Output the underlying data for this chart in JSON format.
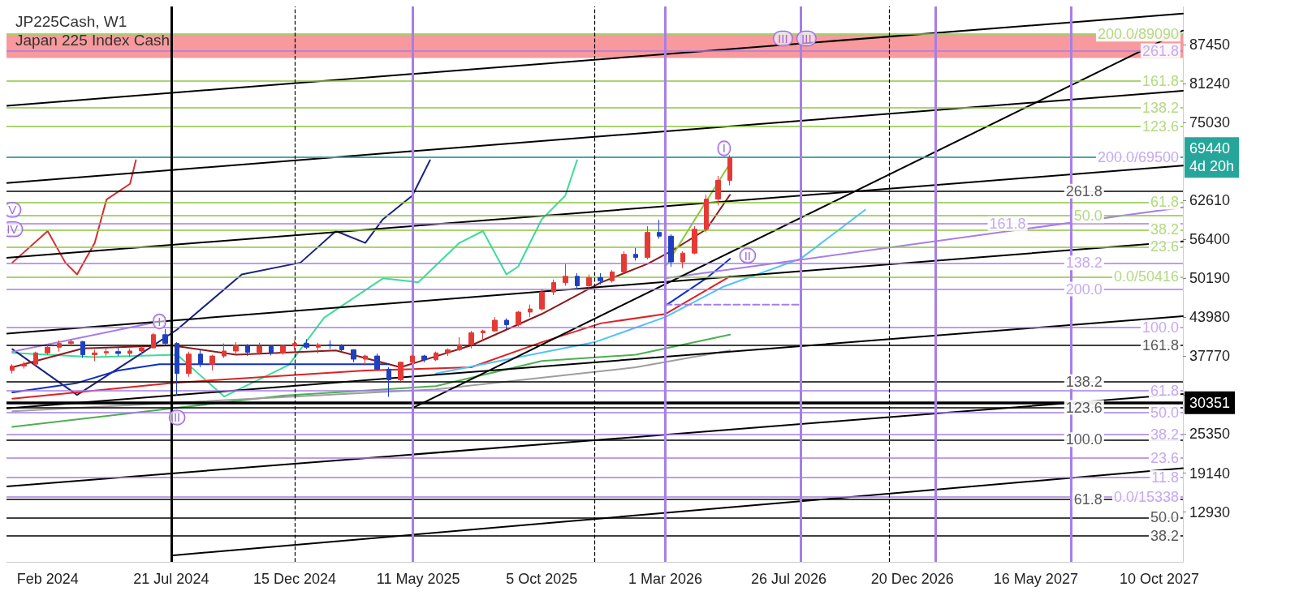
{
  "chart_data": {
    "type": "candlestick",
    "title": "JP225Cash, W1",
    "subtitle": "Japan 225 Index Cash",
    "x": [
      "2024-01-14",
      "2024-01-28",
      "2024-02-11",
      "2024-02-25",
      "2024-03-10",
      "2024-03-24",
      "2024-04-07",
      "2024-04-21",
      "2024-05-05",
      "2024-05-19",
      "2024-06-02",
      "2024-06-16",
      "2024-06-30",
      "2024-07-14",
      "2024-07-28",
      "2024-08-11",
      "2024-08-25",
      "2024-09-08",
      "2024-09-22",
      "2024-10-06",
      "2024-10-20",
      "2024-11-03",
      "2024-11-17",
      "2024-12-01",
      "2024-12-15",
      "2024-12-29",
      "2025-01-12",
      "2025-01-26",
      "2025-02-09",
      "2025-02-23",
      "2025-03-09",
      "2025-03-23",
      "2025-04-06",
      "2025-04-20",
      "2025-05-04",
      "2025-05-18",
      "2025-06-01",
      "2025-06-15",
      "2025-06-29",
      "2025-07-13",
      "2025-07-27",
      "2025-08-10",
      "2025-08-24",
      "2025-09-07",
      "2025-09-21",
      "2025-10-05",
      "2025-10-19",
      "2025-11-02",
      "2025-11-16",
      "2025-11-30",
      "2025-12-14",
      "2025-12-28",
      "2026-01-11",
      "2026-01-25",
      "2026-02-08",
      "2026-02-22",
      "2026-03-08",
      "2026-03-22",
      "2026-04-05",
      "2026-04-19",
      "2026-05-03",
      "2026-05-17"
    ],
    "ohlc": [
      [
        35500,
        36500,
        35000,
        36200
      ],
      [
        36200,
        36900,
        35800,
        36500
      ],
      [
        36500,
        38500,
        36300,
        38300
      ],
      [
        38300,
        39500,
        38000,
        39200
      ],
      [
        39200,
        40300,
        38500,
        39800
      ],
      [
        39800,
        40500,
        39500,
        40100
      ],
      [
        40100,
        40200,
        37500,
        38000
      ],
      [
        38000,
        38800,
        37000,
        38300
      ],
      [
        38300,
        39000,
        37800,
        38500
      ],
      [
        38500,
        39100,
        37800,
        38200
      ],
      [
        38200,
        39000,
        37700,
        38600
      ],
      [
        38600,
        39300,
        38000,
        39100
      ],
      [
        39100,
        41500,
        39000,
        41200
      ],
      [
        41200,
        42100,
        39500,
        39800
      ],
      [
        39800,
        40000,
        31500,
        35000
      ],
      [
        35000,
        38500,
        34500,
        38100
      ],
      [
        38100,
        38800,
        36000,
        36500
      ],
      [
        36500,
        38000,
        35500,
        37800
      ],
      [
        37800,
        39800,
        37500,
        38600
      ],
      [
        38600,
        40000,
        38000,
        39500
      ],
      [
        39500,
        39700,
        37800,
        38400
      ],
      [
        38400,
        39900,
        38000,
        39300
      ],
      [
        39300,
        39500,
        37900,
        38300
      ],
      [
        38300,
        39600,
        38000,
        39400
      ],
      [
        39400,
        40300,
        38800,
        39800
      ],
      [
        39800,
        40500,
        38900,
        39200
      ],
      [
        39200,
        39900,
        38200,
        39600
      ],
      [
        39600,
        40300,
        38900,
        39500
      ],
      [
        39500,
        39700,
        38500,
        38800
      ],
      [
        38800,
        38900,
        36800,
        37300
      ],
      [
        37300,
        38000,
        36300,
        37800
      ],
      [
        37800,
        38200,
        35500,
        35700
      ],
      [
        35700,
        36000,
        31300,
        34000
      ],
      [
        34000,
        36900,
        33800,
        36800
      ],
      [
        36800,
        38000,
        36500,
        37800
      ],
      [
        37800,
        38000,
        36800,
        37200
      ],
      [
        37200,
        38500,
        37000,
        38300
      ],
      [
        38300,
        39000,
        37800,
        38800
      ],
      [
        38800,
        40800,
        38600,
        39600
      ],
      [
        39600,
        41800,
        39000,
        41500
      ],
      [
        41500,
        42000,
        40300,
        41800
      ],
      [
        41800,
        44000,
        41700,
        43500
      ],
      [
        43500,
        43800,
        42000,
        42800
      ],
      [
        42800,
        45000,
        42500,
        44800
      ],
      [
        44800,
        46000,
        44000,
        45300
      ],
      [
        45300,
        48500,
        45000,
        48000
      ],
      [
        48000,
        50000,
        47500,
        49500
      ],
      [
        49500,
        52500,
        49000,
        50500
      ],
      [
        50500,
        51000,
        48500,
        49000
      ],
      [
        49000,
        50800,
        48500,
        50300
      ],
      [
        50300,
        51000,
        49200,
        49800
      ],
      [
        49800,
        51500,
        49500,
        51200
      ],
      [
        51200,
        54500,
        51000,
        54000
      ],
      [
        54000,
        55000,
        53000,
        53500
      ],
      [
        53500,
        58500,
        53200,
        57500
      ],
      [
        57500,
        59500,
        56500,
        56900
      ],
      [
        56900,
        57200,
        52000,
        52800
      ],
      [
        52800,
        54500,
        51800,
        54200
      ],
      [
        54200,
        58500,
        54000,
        58000
      ],
      [
        58000,
        63500,
        57500,
        62800
      ],
      [
        62800,
        66500,
        61800,
        65800
      ],
      [
        65800,
        69800,
        65000,
        69440
      ]
    ],
    "series": [
      {
        "type": "line",
        "color": "#3ddc97",
        "x": [
          "2024-01-14",
          "2024-04-21",
          "2024-07-28",
          "2024-09-22",
          "2024-12-08",
          "2025-01-19",
          "2025-03-30",
          "2025-05-11",
          "2025-06-29",
          "2025-07-27",
          "2025-08-24",
          "2025-09-07",
          "2025-10-05",
          "2025-11-02",
          "2025-11-16"
        ],
        "values": [
          38300,
          37630,
          38000,
          31350,
          36370,
          43900,
          50180,
          49550,
          55830,
          57710,
          50810,
          52060,
          59590,
          63360,
          69000
        ]
      },
      {
        "type": "line",
        "color": "#1a237e",
        "x": [
          "2024-01-14",
          "2024-03-31",
          "2024-06-16",
          "2024-07-28",
          "2024-10-13",
          "2024-12-22",
          "2025-02-02",
          "2025-03-09",
          "2025-03-30",
          "2025-05-04",
          "2025-05-25"
        ],
        "values": [
          38890,
          31600,
          38250,
          42020,
          50810,
          52690,
          57710,
          55830,
          59590,
          63360,
          69000
        ]
      },
      {
        "type": "line",
        "color": "#d32f2f",
        "x": [
          "2024-01-14",
          "2024-02-25",
          "2024-03-17",
          "2024-03-31",
          "2024-04-21",
          "2024-05-05",
          "2024-06-02",
          "2024-06-09"
        ],
        "values": [
          52690,
          57710,
          52690,
          50810,
          55830,
          62730,
          65240,
          69000
        ]
      },
      {
        "type": "line",
        "color": "#8b1a1a",
        "x": [
          "2024-01-14",
          "2024-04-07",
          "2024-07-21",
          "2024-10-06",
          "2025-02-02",
          "2025-04-20",
          "2025-07-13",
          "2025-10-05",
          "2025-12-14",
          "2026-02-08",
          "2026-03-08",
          "2026-04-19",
          "2026-05-17"
        ],
        "values": [
          36000,
          39000,
          39500,
          38000,
          38700,
          36000,
          39500,
          44500,
          49500,
          52500,
          54500,
          58000,
          63500
        ]
      },
      {
        "type": "line",
        "color": "#e02020",
        "x": [
          "2024-01-14",
          "2024-07-21",
          "2025-03-09",
          "2025-07-13",
          "2025-10-05",
          "2025-12-14",
          "2026-03-01",
          "2026-05-17"
        ],
        "values": [
          31000,
          33500,
          35500,
          36000,
          40000,
          43000,
          44500,
          50500
        ]
      },
      {
        "type": "line",
        "color": "#1030c0",
        "x": [
          "2024-01-14",
          "2024-03-31",
          "2024-05-19",
          "2024-07-07",
          "2025-04-06",
          "2025-09-01",
          "2026-03-01",
          "2026-04-19",
          "2026-05-17"
        ],
        "values": [
          32000,
          33500,
          35500,
          36500,
          36500,
          null,
          45800,
          50200,
          53300
        ]
      },
      {
        "type": "line",
        "color": "#4caf50",
        "x": [
          "2024-01-14",
          "2024-12-01",
          "2025-06-01",
          "2025-10-05",
          "2026-01-25",
          "2026-05-17"
        ],
        "values": [
          26500,
          31500,
          33000,
          37000,
          38000,
          41200
        ]
      },
      {
        "type": "line",
        "color": "#9e9e9e",
        "x": [
          "2024-01-14",
          "2025-06-01",
          "2026-01-25",
          "2026-05-17"
        ],
        "values": [
          29000,
          32500,
          36000,
          38700
        ]
      },
      {
        "type": "line",
        "color": "#4fc3f7",
        "x": [
          "2025-06-01",
          "2025-12-07",
          "2026-03-01",
          "2026-05-10",
          "2026-08-09",
          "2026-10-25"
        ],
        "values": [
          35000,
          40000,
          44000,
          48900,
          53300,
          61100
        ]
      },
      {
        "type": "line",
        "color": "#a77ee6",
        "line_style": "dashed",
        "x": [
          "2026-03-01",
          "2026-08-09"
        ],
        "values": [
          46000,
          46000
        ]
      },
      {
        "type": "line",
        "color": "#8cc63f",
        "x": [
          "2026-03-01",
          "2026-05-17"
        ],
        "values": [
          52000,
          68500
        ]
      },
      {
        "type": "line",
        "color": "#a77ee6",
        "x": [
          "2024-01-14",
          "2024-07-07"
        ],
        "values": [
          38500,
          43300
        ]
      },
      {
        "type": "line",
        "color": "#a77ee6",
        "x": [
          "2026-03-01",
          "2027-11-07"
        ],
        "values": [
          50180,
          61500
        ]
      },
      {
        "type": "line",
        "color": "#000000",
        "x": [
          "2025-05-04",
          "2027-11-07"
        ],
        "values": [
          29500,
          89660
        ]
      },
      {
        "type": "line",
        "color": "#000000",
        "x": [
          "2024-01-07",
          "2027-11-07"
        ],
        "values": [
          77670,
          92370
        ]
      },
      {
        "type": "line",
        "color": "#000000",
        "x": [
          "2024-01-07",
          "2027-11-07"
        ],
        "values": [
          65370,
          80070
        ]
      },
      {
        "type": "line",
        "color": "#000000",
        "x": [
          "2024-01-07",
          "2027-11-07"
        ],
        "values": [
          53440,
          68140
        ]
      },
      {
        "type": "line",
        "color": "#000000",
        "x": [
          "2024-01-07",
          "2027-11-07"
        ],
        "values": [
          41380,
          56080
        ]
      },
      {
        "type": "line",
        "color": "#000000",
        "x": [
          "2024-01-07",
          "2027-11-07"
        ],
        "values": [
          29450,
          44150
        ]
      },
      {
        "type": "line",
        "color": "#000000",
        "x": [
          "2024-01-07",
          "2027-11-07"
        ],
        "values": [
          17030,
          31730
        ]
      },
      {
        "type": "line",
        "color": "#000000",
        "x": [
          "2024-07-21",
          "2027-11-07"
        ],
        "values": [
          6000,
          19920
        ]
      }
    ],
    "ref_lines": [
      {
        "axis": "y",
        "value": 89090,
        "label": "200.0/89090",
        "color": "#8cc63f"
      },
      {
        "axis": "y",
        "value": 81670,
        "color": "#8cc63f"
      },
      {
        "axis": "y",
        "value": 77360,
        "color": "#8cc63f"
      },
      {
        "axis": "y",
        "value": 74410,
        "color": "#8cc63f"
      },
      {
        "axis": "y",
        "value": 69500,
        "label": "200.0/69500",
        "color": "#a77ee6"
      },
      {
        "axis": "y",
        "value": 62300,
        "color": "#8cc63f"
      },
      {
        "axis": "y",
        "value": 60140,
        "color": "#8cc63f"
      },
      {
        "axis": "y",
        "value": 57930,
        "color": "#8cc63f"
      },
      {
        "axis": "y",
        "value": 55220,
        "color": "#8cc63f"
      },
      {
        "axis": "y",
        "value": 50416,
        "label": "0.0/50416",
        "color": "#8cc63f"
      },
      {
        "axis": "y",
        "value": 86450,
        "color": "#a77ee6"
      },
      {
        "axis": "y",
        "value": 58900,
        "color": "#a77ee6"
      },
      {
        "axis": "y",
        "value": 52640,
        "color": "#a77ee6"
      },
      {
        "axis": "y",
        "value": 48460,
        "color": "#a77ee6"
      },
      {
        "axis": "y",
        "value": 42370,
        "color": "#a77ee6"
      },
      {
        "axis": "y",
        "value": 32260,
        "color": "#a77ee6"
      },
      {
        "axis": "y",
        "value": 28780,
        "color": "#a77ee6"
      },
      {
        "axis": "y",
        "value": 25330,
        "color": "#a77ee6"
      },
      {
        "axis": "y",
        "value": 21580,
        "color": "#a77ee6"
      },
      {
        "axis": "y",
        "value": 18440,
        "color": "#a77ee6"
      },
      {
        "axis": "y",
        "value": 15338,
        "label": "0.0/15338",
        "color": "#a77ee6"
      },
      {
        "axis": "y",
        "value": 64080,
        "color": "#000000"
      },
      {
        "axis": "y",
        "value": 39480,
        "color": "#000000"
      },
      {
        "axis": "y",
        "value": 33700,
        "color": "#000000"
      },
      {
        "axis": "y",
        "value": 29600,
        "color": "#000000"
      },
      {
        "axis": "y",
        "value": 24470,
        "color": "#000000"
      },
      {
        "axis": "y",
        "value": 14940,
        "color": "#000000"
      },
      {
        "axis": "y",
        "value": 12050,
        "color": "#000000"
      },
      {
        "axis": "y",
        "value": 9160,
        "color": "#000000"
      },
      {
        "axis": "y",
        "value": 30351,
        "label": "30351",
        "color": "#000000"
      },
      {
        "axis": "y",
        "value": 69440,
        "label": "69440\n4d 20h",
        "color": "#26a69a"
      },
      {
        "axis": "x",
        "value": "2024-07-21",
        "color": "#000000"
      },
      {
        "axis": "x",
        "value": "2025-05-04",
        "color": "#a77ee6"
      },
      {
        "axis": "x",
        "value": "2026-03-01",
        "color": "#a77ee6"
      },
      {
        "axis": "x",
        "value": "2026-08-09",
        "color": "#a77ee6"
      },
      {
        "axis": "x",
        "value": "2027-01-17",
        "color": "#a77ee6"
      },
      {
        "axis": "x",
        "value": "2027-06-27",
        "color": "#a77ee6"
      },
      {
        "axis": "x",
        "value": "2024-12-15",
        "color": "#000000",
        "line_style": "dashed"
      },
      {
        "axis": "x",
        "value": "2025-12-07",
        "color": "#000000",
        "line_style": "dashed"
      },
      {
        "axis": "x",
        "value": "2026-11-22",
        "color": "#000000",
        "line_style": "dashed"
      }
    ],
    "bands": [
      {
        "axis": "y",
        "from": 85300,
        "to": 89000,
        "color": "#ee1c25"
      }
    ],
    "annotations": [
      {
        "text": "V",
        "x": "2024-01-14",
        "y": 61100
      },
      {
        "text": "IV",
        "x": "2024-01-14",
        "y": 58000
      },
      {
        "text": "I",
        "x": "2024-07-07",
        "y": 43300
      },
      {
        "text": "II",
        "x": "2024-07-28",
        "y": 28000
      },
      {
        "text": "III",
        "x": "2026-07-19",
        "y": 88400
      },
      {
        "text": "III",
        "x": "2026-08-16",
        "y": 88400
      },
      {
        "text": "I",
        "x": "2026-05-10",
        "y": 70900
      },
      {
        "text": "II",
        "x": "2026-06-07",
        "y": 53800
      },
      {
        "text": "161.8",
        "x": "2027-11-07",
        "y": 81670
      },
      {
        "text": "138.2",
        "x": "2027-11-07",
        "y": 77360
      },
      {
        "text": "123.6",
        "x": "2027-11-07",
        "y": 74410
      },
      {
        "text": "61.8",
        "x": "2027-11-07",
        "y": 62300
      },
      {
        "text": "50.0",
        "x": "2027-08-08",
        "y": 60140
      },
      {
        "text": "38.2",
        "x": "2027-11-07",
        "y": 57930
      },
      {
        "text": "23.6",
        "x": "2027-11-07",
        "y": 55220
      },
      {
        "text": "261.8",
        "x": "2027-11-07",
        "y": 86450
      },
      {
        "text": "161.8",
        "x": "2027-05-09",
        "y": 58900
      },
      {
        "text": "138.2",
        "x": "2027-08-08",
        "y": 52640
      },
      {
        "text": "200.0",
        "x": "2027-08-08",
        "y": 48460
      },
      {
        "text": "100.0",
        "x": "2027-11-07",
        "y": 42370
      },
      {
        "text": "61.8",
        "x": "2027-11-07",
        "y": 32260
      },
      {
        "text": "50.0",
        "x": "2027-11-07",
        "y": 28780
      },
      {
        "text": "38.2",
        "x": "2027-11-07",
        "y": 25330
      },
      {
        "text": "23.6",
        "x": "2027-11-07",
        "y": 21580
      },
      {
        "text": "11.8",
        "x": "2027-11-07",
        "y": 18440
      },
      {
        "text": "261.8",
        "x": "2027-08-08",
        "y": 64080
      },
      {
        "text": "161.8",
        "x": "2027-11-07",
        "y": 39480
      },
      {
        "text": "138.2",
        "x": "2027-08-08",
        "y": 33700
      },
      {
        "text": "123.6",
        "x": "2027-08-08",
        "y": 29600
      },
      {
        "text": "100.0",
        "x": "2027-08-08",
        "y": 24470
      },
      {
        "text": "61.8",
        "x": "2027-08-08",
        "y": 14940
      },
      {
        "text": "50.0",
        "x": "2027-11-07",
        "y": 12050
      },
      {
        "text": "38.2",
        "x": "2027-11-07",
        "y": 9160
      }
    ],
    "xlim": [
      "2024-01-07",
      "2027-11-07"
    ],
    "xticks": [
      {
        "value": "2024-02-25",
        "label": "Feb 2024"
      },
      {
        "value": "2024-07-21",
        "label": "21 Jul 2024"
      },
      {
        "value": "2024-12-15",
        "label": "15 Dec 2024"
      },
      {
        "value": "2025-05-11",
        "label": "11 May 2025"
      },
      {
        "value": "2025-10-05",
        "label": "5 Oct 2025"
      },
      {
        "value": "2026-03-01",
        "label": "1 Mar 2026"
      },
      {
        "value": "2026-07-26",
        "label": "26 Jul 2026"
      },
      {
        "value": "2026-12-20",
        "label": "20 Dec 2026"
      },
      {
        "value": "2027-05-16",
        "label": "16 May 2027"
      },
      {
        "value": "2027-10-10",
        "label": "10 Oct 2027"
      }
    ],
    "ylim": [
      5000,
      93500
    ],
    "yticks": [
      12930,
      19140,
      25350,
      {
        "value": 31560,
        "label": null
      },
      37770,
      43980,
      50190,
      56400,
      62610,
      75030,
      81240,
      87450
    ]
  }
}
